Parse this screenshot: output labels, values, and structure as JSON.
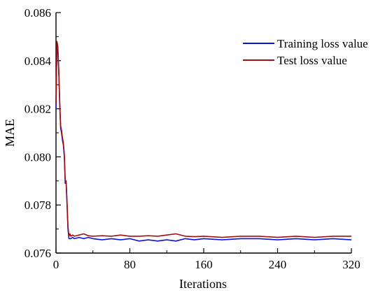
{
  "chart_data": {
    "type": "line",
    "title": "",
    "xlabel": "Iterations",
    "ylabel": "MAE",
    "xlim": [
      0,
      320
    ],
    "ylim": [
      0.076,
      0.086
    ],
    "xticks": [
      "0",
      "80",
      "160",
      "240",
      "320"
    ],
    "yticks": [
      "0.076",
      "0.078",
      "0.080",
      "0.082",
      "0.084",
      "0.086"
    ],
    "grid": false,
    "legend_position": "top-right",
    "series": [
      {
        "name": "Training loss value",
        "color": "#1010e0",
        "x": [
          0,
          1,
          2,
          3,
          4,
          5,
          6,
          7,
          8,
          9,
          10,
          11,
          12,
          13,
          14,
          15,
          16,
          18,
          20,
          25,
          30,
          35,
          40,
          50,
          60,
          70,
          80,
          90,
          100,
          110,
          120,
          130,
          140,
          150,
          160,
          180,
          200,
          220,
          240,
          260,
          280,
          300,
          320
        ],
        "y": [
          0.082,
          0.0847,
          0.0845,
          0.0835,
          0.0822,
          0.0812,
          0.081,
          0.0807,
          0.0805,
          0.08,
          0.0789,
          0.0789,
          0.078,
          0.077,
          0.0766,
          0.0766,
          0.0766,
          0.07665,
          0.0766,
          0.07665,
          0.0766,
          0.07665,
          0.0766,
          0.07655,
          0.0766,
          0.07655,
          0.0766,
          0.0765,
          0.07655,
          0.0765,
          0.07655,
          0.0765,
          0.0766,
          0.07655,
          0.0766,
          0.07655,
          0.0766,
          0.0766,
          0.07655,
          0.0766,
          0.07655,
          0.0766,
          0.07655
        ]
      },
      {
        "name": "Test loss value",
        "color": "#a01010",
        "x": [
          0,
          1,
          2,
          3,
          4,
          5,
          6,
          7,
          8,
          9,
          10,
          11,
          12,
          13,
          14,
          15,
          16,
          18,
          20,
          25,
          30,
          35,
          40,
          50,
          60,
          70,
          80,
          90,
          100,
          110,
          120,
          130,
          140,
          150,
          160,
          180,
          200,
          220,
          240,
          260,
          280,
          300,
          320
        ],
        "y": [
          0.0822,
          0.0848,
          0.0846,
          0.0836,
          0.0823,
          0.0813,
          0.0811,
          0.0808,
          0.0806,
          0.0801,
          0.079,
          0.079,
          0.0781,
          0.0771,
          0.0767,
          0.0768,
          0.0767,
          0.07675,
          0.0767,
          0.07675,
          0.0768,
          0.07672,
          0.0767,
          0.07672,
          0.0767,
          0.07675,
          0.0767,
          0.0767,
          0.07672,
          0.0767,
          0.07675,
          0.0768,
          0.0767,
          0.07668,
          0.0767,
          0.07665,
          0.0767,
          0.0767,
          0.07665,
          0.0767,
          0.07665,
          0.0767,
          0.0767
        ]
      }
    ]
  }
}
